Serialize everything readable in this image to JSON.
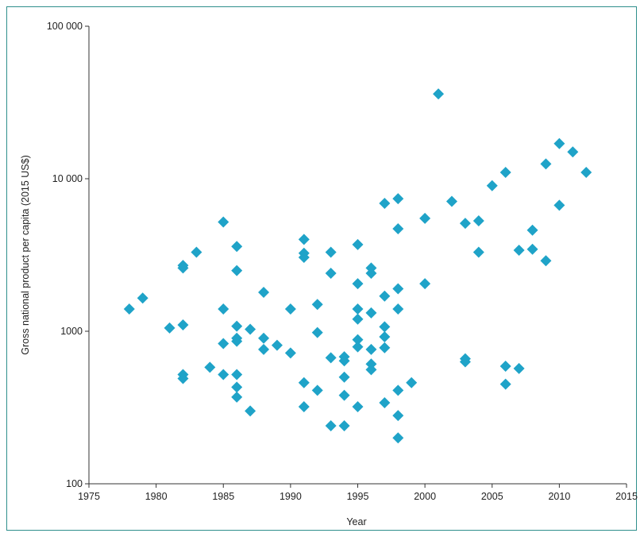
{
  "chart_data": {
    "type": "scatter",
    "title": "",
    "xlabel": "Year",
    "ylabel": "Gross national product per capita (2015 US$)",
    "xlim": [
      1975,
      2015
    ],
    "ylim": [
      100,
      100000
    ],
    "yscale": "log",
    "grid": false,
    "marker": "diamond",
    "marker_color": "#1fa3c8",
    "x_ticks": [
      1975,
      1980,
      1985,
      1990,
      1995,
      2000,
      2005,
      2010,
      2015
    ],
    "x_tick_labels": [
      "1975",
      "1980",
      "1985",
      "1990",
      "1995",
      "2000",
      "2005",
      "2010",
      "2015"
    ],
    "y_ticks": [
      100,
      1000,
      10000,
      100000
    ],
    "y_tick_labels": [
      "100",
      "1000",
      "10 000",
      "100 000"
    ],
    "points": [
      {
        "x": 1978,
        "y": 1400
      },
      {
        "x": 1979,
        "y": 1650
      },
      {
        "x": 1981,
        "y": 1050
      },
      {
        "x": 1982,
        "y": 2700
      },
      {
        "x": 1982,
        "y": 2600
      },
      {
        "x": 1982,
        "y": 1100
      },
      {
        "x": 1982,
        "y": 520
      },
      {
        "x": 1982,
        "y": 490
      },
      {
        "x": 1983,
        "y": 3300
      },
      {
        "x": 1984,
        "y": 580
      },
      {
        "x": 1985,
        "y": 5200
      },
      {
        "x": 1985,
        "y": 1400
      },
      {
        "x": 1985,
        "y": 830
      },
      {
        "x": 1985,
        "y": 520
      },
      {
        "x": 1986,
        "y": 3600
      },
      {
        "x": 1986,
        "y": 2500
      },
      {
        "x": 1986,
        "y": 1080
      },
      {
        "x": 1986,
        "y": 900
      },
      {
        "x": 1986,
        "y": 860
      },
      {
        "x": 1986,
        "y": 520
      },
      {
        "x": 1986,
        "y": 430
      },
      {
        "x": 1986,
        "y": 370
      },
      {
        "x": 1987,
        "y": 1030
      },
      {
        "x": 1987,
        "y": 300
      },
      {
        "x": 1988,
        "y": 1800
      },
      {
        "x": 1988,
        "y": 900
      },
      {
        "x": 1988,
        "y": 760
      },
      {
        "x": 1989,
        "y": 810
      },
      {
        "x": 1990,
        "y": 1400
      },
      {
        "x": 1990,
        "y": 720
      },
      {
        "x": 1991,
        "y": 4000
      },
      {
        "x": 1991,
        "y": 3250
      },
      {
        "x": 1991,
        "y": 3050
      },
      {
        "x": 1991,
        "y": 460
      },
      {
        "x": 1991,
        "y": 320
      },
      {
        "x": 1992,
        "y": 1500
      },
      {
        "x": 1992,
        "y": 980
      },
      {
        "x": 1992,
        "y": 410
      },
      {
        "x": 1993,
        "y": 3300
      },
      {
        "x": 1993,
        "y": 2400
      },
      {
        "x": 1993,
        "y": 670
      },
      {
        "x": 1993,
        "y": 240
      },
      {
        "x": 1994,
        "y": 680
      },
      {
        "x": 1994,
        "y": 640
      },
      {
        "x": 1994,
        "y": 500
      },
      {
        "x": 1994,
        "y": 380
      },
      {
        "x": 1994,
        "y": 240
      },
      {
        "x": 1995,
        "y": 3700
      },
      {
        "x": 1995,
        "y": 2050
      },
      {
        "x": 1995,
        "y": 1400
      },
      {
        "x": 1995,
        "y": 1200
      },
      {
        "x": 1995,
        "y": 880
      },
      {
        "x": 1995,
        "y": 790
      },
      {
        "x": 1995,
        "y": 320
      },
      {
        "x": 1996,
        "y": 2600
      },
      {
        "x": 1996,
        "y": 2400
      },
      {
        "x": 1996,
        "y": 1320
      },
      {
        "x": 1996,
        "y": 760
      },
      {
        "x": 1996,
        "y": 610
      },
      {
        "x": 1996,
        "y": 560
      },
      {
        "x": 1997,
        "y": 6900
      },
      {
        "x": 1997,
        "y": 1700
      },
      {
        "x": 1997,
        "y": 1070
      },
      {
        "x": 1997,
        "y": 920
      },
      {
        "x": 1997,
        "y": 780
      },
      {
        "x": 1997,
        "y": 340
      },
      {
        "x": 1998,
        "y": 7400
      },
      {
        "x": 1998,
        "y": 4700
      },
      {
        "x": 1998,
        "y": 1900
      },
      {
        "x": 1998,
        "y": 1400
      },
      {
        "x": 1998,
        "y": 410
      },
      {
        "x": 1998,
        "y": 280
      },
      {
        "x": 1998,
        "y": 200
      },
      {
        "x": 1999,
        "y": 460
      },
      {
        "x": 2000,
        "y": 5500
      },
      {
        "x": 2000,
        "y": 2050
      },
      {
        "x": 2001,
        "y": 36000
      },
      {
        "x": 2002,
        "y": 7100
      },
      {
        "x": 2003,
        "y": 5100
      },
      {
        "x": 2003,
        "y": 660
      },
      {
        "x": 2003,
        "y": 630
      },
      {
        "x": 2004,
        "y": 5300
      },
      {
        "x": 2004,
        "y": 3300
      },
      {
        "x": 2005,
        "y": 9000
      },
      {
        "x": 2006,
        "y": 11000
      },
      {
        "x": 2006,
        "y": 590
      },
      {
        "x": 2006,
        "y": 450
      },
      {
        "x": 2007,
        "y": 3400
      },
      {
        "x": 2007,
        "y": 570
      },
      {
        "x": 2008,
        "y": 4600
      },
      {
        "x": 2008,
        "y": 3450
      },
      {
        "x": 2009,
        "y": 12500
      },
      {
        "x": 2009,
        "y": 2900
      },
      {
        "x": 2010,
        "y": 17000
      },
      {
        "x": 2010,
        "y": 6700
      },
      {
        "x": 2011,
        "y": 15000
      },
      {
        "x": 2012,
        "y": 11000
      }
    ]
  }
}
